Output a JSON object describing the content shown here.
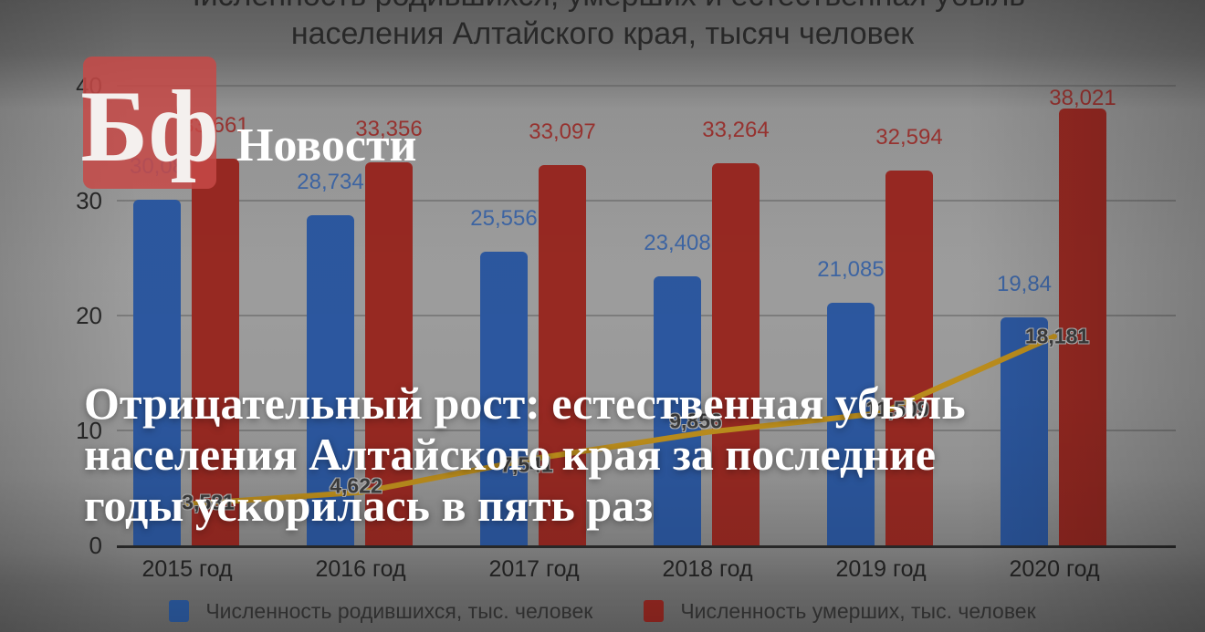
{
  "branding": {
    "logo_text": "Бф",
    "site_section_label": "Новости"
  },
  "headline": {
    "line1": "Отрицательный рост: естественная убыль",
    "line2": "населения Алтайского края за последние",
    "line3": "годы ускорилась в пять раз"
  },
  "chart_data": {
    "type": "bar",
    "title_lines": [
      "Численность родившихся, умерших и естественная убыль",
      "населения Алтайского края, тысяч человек"
    ],
    "categories": [
      "2015 год",
      "2016 год",
      "2017 год",
      "2018 год",
      "2019 год",
      "2020 год"
    ],
    "series": [
      {
        "name": "Численность родившихся, тыс. человек",
        "type": "bar",
        "color": "#2d5aa4",
        "values": [
          30.08,
          28.734,
          25.556,
          23.408,
          21.085,
          19.84
        ],
        "labels": [
          "30,08",
          "28,734",
          "25,556",
          "23,408",
          "21,085",
          "19,84"
        ]
      },
      {
        "name": "Численность умерших, тыс. человек",
        "type": "bar",
        "color": "#9c2a23",
        "values": [
          33.661,
          33.356,
          33.097,
          33.264,
          32.594,
          38.021
        ],
        "labels": [
          "33,661",
          "33,356",
          "33,097",
          "33,264",
          "32,594",
          "38,021"
        ]
      },
      {
        "name": "Естественная убыль",
        "type": "line",
        "color": "#c2921d",
        "values": [
          3.581,
          4.622,
          7.541,
          9.856,
          11.509,
          18.181
        ],
        "labels": [
          "3,581",
          "4,622",
          "7,541",
          "9,856",
          "11,509",
          "18,181"
        ]
      }
    ],
    "y_ticks": [
      0,
      10,
      20,
      30,
      40
    ],
    "ylim": [
      0,
      42
    ],
    "grid": true,
    "legend_position": "bottom",
    "legend": [
      "Численность родившихся, тыс. человек",
      "Численность умерших, тыс. человек"
    ]
  }
}
